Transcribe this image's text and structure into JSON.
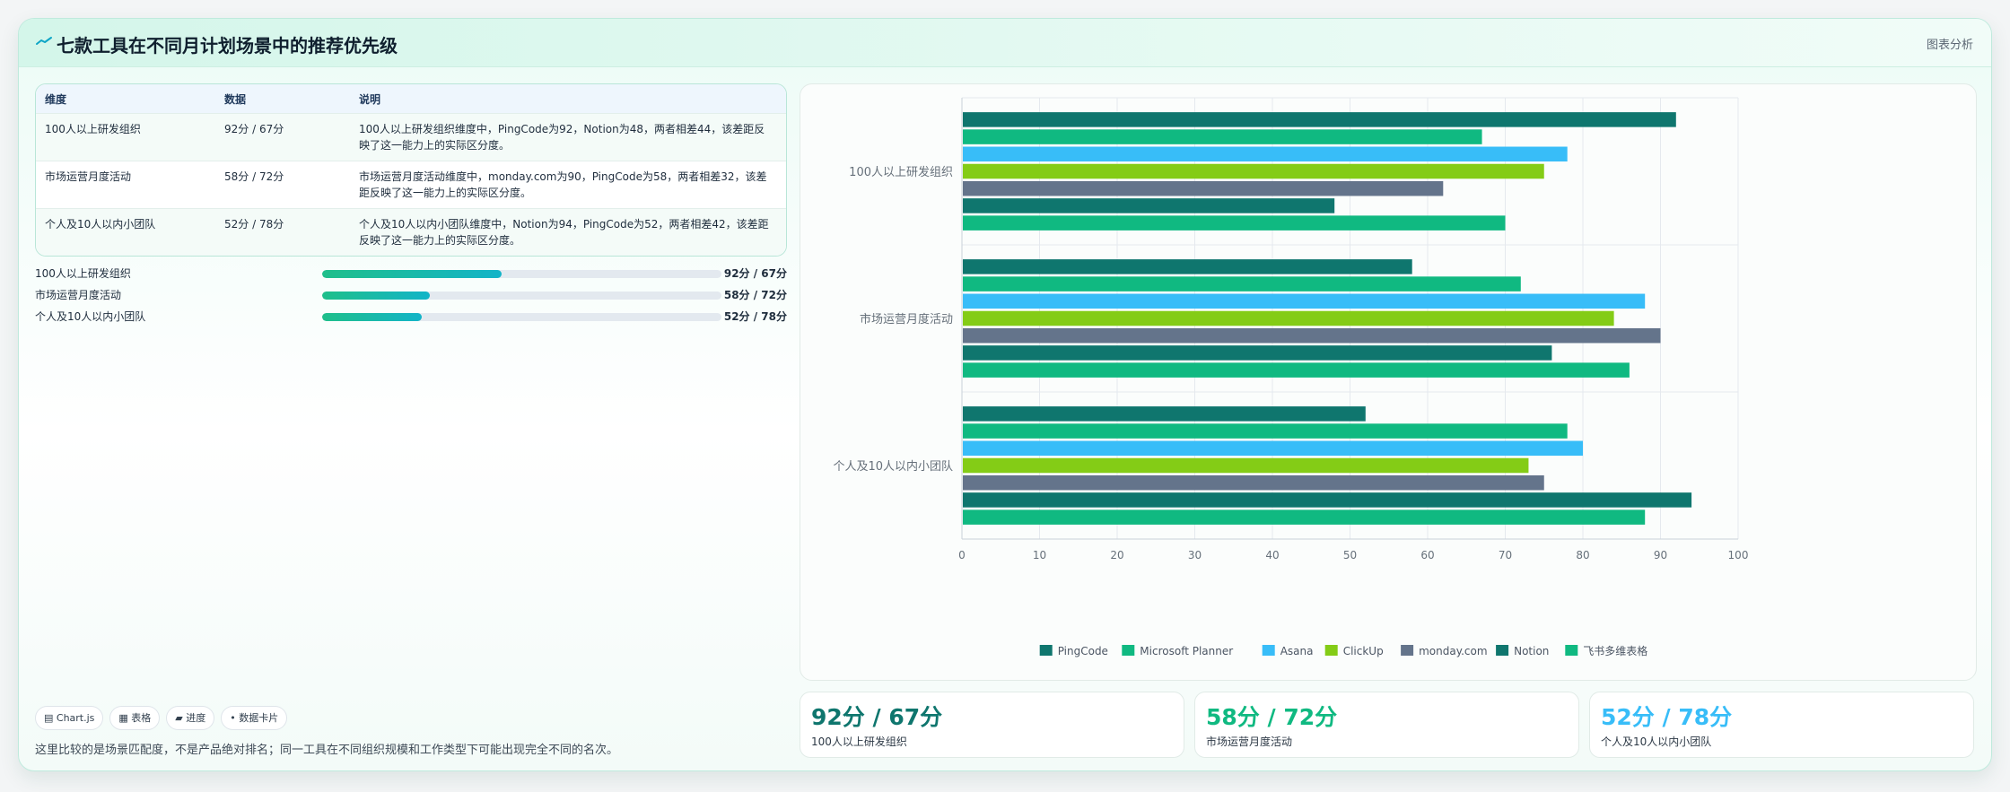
{
  "header": {
    "title": "七款工具在不同月计划场景中的推荐优先级",
    "tag": "图表分析"
  },
  "table": {
    "headers": [
      "维度",
      "数据",
      "说明"
    ],
    "rows": [
      {
        "dim": "100人以上研发组织",
        "data": "92分 / 67分",
        "desc": "100人以上研发组织维度中，PingCode为92，Notion为48，两者相差44，该差距反映了这一能力上的实际区分度。"
      },
      {
        "dim": "市场运营月度活动",
        "data": "58分 / 72分",
        "desc": "市场运营月度活动维度中，monday.com为90，PingCode为58，两者相差32，该差距反映了这一能力上的实际区分度。"
      },
      {
        "dim": "个人及10人以内小团队",
        "data": "52分 / 78分",
        "desc": "个人及10人以内小团队维度中，Notion为94，PingCode为52，两者相差42，该差距反映了这一能力上的实际区分度。"
      }
    ]
  },
  "progress": [
    {
      "label": "100人以上研发组织",
      "value_text": "92分 / 67分",
      "fraction": 0.45
    },
    {
      "label": "市场运营月度活动",
      "value_text": "58分 / 72分",
      "fraction": 0.27
    },
    {
      "label": "个人及10人以内小团队",
      "value_text": "52分 / 78分",
      "fraction": 0.25
    }
  ],
  "chips": [
    "▤ Chart.js",
    "▦ 表格",
    "▰ 进度",
    "• 数据卡片"
  ],
  "footnote": "这里比较的是场景匹配度，不是产品绝对排名；同一工具在不同组织规模和工作类型下可能出现完全不同的名次。",
  "stats": [
    {
      "value": "92分 / 67分",
      "label": "100人以上研发组织",
      "color": "#0f766e"
    },
    {
      "value": "58分 / 72分",
      "label": "市场运营月度活动",
      "color": "#10b981"
    },
    {
      "value": "52分 / 78分",
      "label": "个人及10人以内小团队",
      "color": "#38bdf8"
    }
  ],
  "chart_data": {
    "type": "bar",
    "orientation": "horizontal",
    "categories": [
      "100人以上研发组织",
      "市场运营月度活动",
      "个人及10人以内小团队"
    ],
    "series": [
      {
        "name": "PingCode",
        "color": "#0f766e",
        "values": [
          92,
          58,
          52
        ]
      },
      {
        "name": "Microsoft Planner",
        "color": "#10b981",
        "values": [
          67,
          72,
          78
        ]
      },
      {
        "name": "Asana",
        "color": "#38bdf8",
        "values": [
          78,
          88,
          80
        ]
      },
      {
        "name": "ClickUp",
        "color": "#84cc16",
        "values": [
          75,
          84,
          73
        ]
      },
      {
        "name": "monday.com",
        "color": "#64748b",
        "values": [
          62,
          90,
          75
        ]
      },
      {
        "name": "Notion",
        "color": "#0f766e",
        "values": [
          48,
          76,
          94
        ]
      },
      {
        "name": "飞书多维表格",
        "color": "#10b981",
        "values": [
          70,
          86,
          88
        ]
      }
    ],
    "xlim": [
      0,
      100
    ],
    "xticks": [
      0,
      10,
      20,
      30,
      40,
      50,
      60,
      70,
      80,
      90,
      100
    ],
    "grid": true,
    "legend_position": "bottom"
  }
}
